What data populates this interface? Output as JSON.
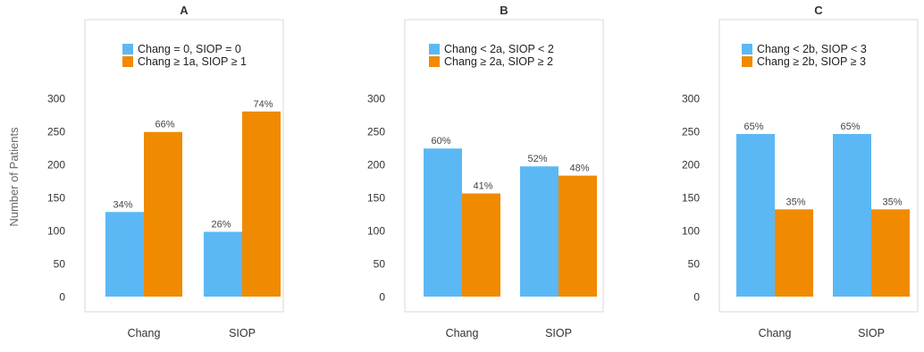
{
  "figure": {
    "ylabel": "Number of Patients"
  },
  "chart_data": [
    {
      "type": "bar",
      "title": "A",
      "categories": [
        "Chang",
        "SIOP"
      ],
      "ylim": [
        0,
        300
      ],
      "yticks": [
        0,
        50,
        100,
        150,
        200,
        250,
        300
      ],
      "grid": false,
      "legend_position": "top",
      "series": [
        {
          "name": "Chang = 0, SIOP = 0",
          "color": "#5bb8f5",
          "values": [
            128,
            98
          ],
          "labels": [
            "34%",
            "26%"
          ]
        },
        {
          "name": "Chang ≥ 1a, SIOP ≥ 1",
          "color": "#f08a00",
          "values": [
            249,
            280
          ],
          "labels": [
            "66%",
            "74%"
          ]
        }
      ]
    },
    {
      "type": "bar",
      "title": "B",
      "categories": [
        "Chang",
        "SIOP"
      ],
      "ylim": [
        0,
        300
      ],
      "yticks": [
        0,
        50,
        100,
        150,
        200,
        250,
        300
      ],
      "grid": false,
      "legend_position": "top",
      "series": [
        {
          "name": "Chang < 2a, SIOP < 2",
          "color": "#5bb8f5",
          "values": [
            224,
            197
          ],
          "labels": [
            "60%",
            "52%"
          ]
        },
        {
          "name": "Chang ≥ 2a, SIOP ≥ 2",
          "color": "#f08a00",
          "values": [
            156,
            183
          ],
          "labels": [
            "41%",
            "48%"
          ]
        }
      ]
    },
    {
      "type": "bar",
      "title": "C",
      "categories": [
        "Chang",
        "SIOP"
      ],
      "ylim": [
        0,
        300
      ],
      "yticks": [
        0,
        50,
        100,
        150,
        200,
        250,
        300
      ],
      "grid": false,
      "legend_position": "top",
      "series": [
        {
          "name": "Chang < 2b, SIOP < 3",
          "color": "#5bb8f5",
          "values": [
            246,
            246
          ],
          "labels": [
            "65%",
            "65%"
          ]
        },
        {
          "name": "Chang ≥ 2b, SIOP ≥ 3",
          "color": "#f08a00",
          "values": [
            132,
            132
          ],
          "labels": [
            "35%",
            "35%"
          ]
        }
      ]
    }
  ]
}
